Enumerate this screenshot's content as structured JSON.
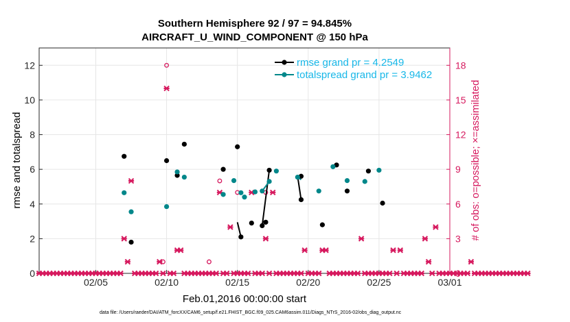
{
  "chart_data": {
    "type": "scatter",
    "title": "Southern Hemisphere 92 / 97 = 94.845%",
    "subtitle": "AIRCRAFT_U_WIND_COMPONENT @ 150 hPa",
    "xlabel": "Feb.01,2016 00:00:00 start",
    "ylabel": "rmse and totalspread",
    "ylabel_right": "# of obs: o=possible; ×=assimilated",
    "footer": "data file: /Users/raeder/DAI/ATM_forcXX/CAM6_setup/f.e21.FHIST_BGC.f09_025.CAM6assim.011/Diags_NTrS_2016-02/obs_diag_output.nc",
    "xlim": [
      1,
      30
    ],
    "ylim": [
      0,
      13
    ],
    "ylim_right": [
      0,
      19.5
    ],
    "x_ticks": [
      5,
      10,
      15,
      20,
      25,
      30
    ],
    "x_tick_labels": [
      "02/05",
      "02/10",
      "02/15",
      "02/20",
      "02/25",
      "03/01"
    ],
    "y_ticks": [
      0,
      2,
      4,
      6,
      8,
      10,
      12
    ],
    "y_ticks_right": [
      0,
      3,
      6,
      9,
      12,
      15,
      18
    ],
    "grid": true,
    "legend_position": "top-right",
    "colors": {
      "rmse": "#000000",
      "spread": "#00878a",
      "obs": "#d6195e",
      "legend_text": "#17b7e8"
    },
    "series": [
      {
        "name": "rmse grand pr = 4.2549",
        "x": [
          7.0,
          7.5,
          10.0,
          10.75,
          11.25,
          14.0,
          15.0,
          15.25,
          15.5,
          16.5,
          17.0,
          17.25,
          19.5,
          19.75,
          21.0,
          22.0,
          22.75,
          24.25,
          24.5,
          25.25
        ],
        "y": [
          6.75,
          1.8,
          6.5,
          5.65,
          7.45,
          6.0,
          7.3,
          2.95,
          2.1,
          2.9,
          2.75,
          5.95,
          5.6,
          4.25,
          2.8,
          6.25,
          4.75,
          5.9,
          4.05,
          4.05
        ],
        "x_points": [
          7.0,
          7.5,
          10.0,
          10.75,
          11.25,
          14.0,
          15.0,
          17.0,
          19.5,
          21.0,
          22.0,
          22.75,
          24.25,
          25.25
        ],
        "y_points": [
          6.75,
          1.8,
          6.5,
          5.65,
          7.45,
          6.0,
          7.3,
          2.95,
          5.6,
          2.8,
          6.25,
          4.75,
          5.9,
          4.05
        ],
        "segments": [
          [
            [
              15.0,
              2.95
            ],
            [
              15.25,
              2.1
            ]
          ],
          [
            [
              16.75,
              2.75
            ],
            [
              17.25,
              5.95
            ]
          ],
          [
            [
              19.25,
              5.6
            ],
            [
              19.5,
              4.25
            ]
          ]
        ],
        "extra_points": [
          [
            15.25,
            2.1
          ],
          [
            16.0,
            2.9
          ],
          [
            16.75,
            2.75
          ],
          [
            17.25,
            5.95
          ],
          [
            19.5,
            4.25
          ]
        ]
      },
      {
        "name": "totalspread grand pr = 3.9462",
        "points": [
          [
            7.0,
            4.65
          ],
          [
            7.5,
            3.55
          ],
          [
            10.0,
            3.85
          ],
          [
            10.75,
            5.85
          ],
          [
            11.25,
            5.55
          ],
          [
            14.0,
            4.55
          ],
          [
            14.75,
            5.35
          ],
          [
            15.25,
            4.65
          ],
          [
            15.5,
            4.4
          ],
          [
            16.25,
            4.7
          ],
          [
            16.75,
            4.75
          ],
          [
            17.25,
            5.3
          ],
          [
            17.75,
            5.9
          ],
          [
            19.25,
            5.55
          ],
          [
            20.75,
            4.75
          ],
          [
            21.75,
            6.15
          ],
          [
            22.75,
            5.35
          ],
          [
            24.0,
            5.3
          ],
          [
            25.0,
            5.95
          ]
        ],
        "segments": [
          [
            [
              16.75,
              4.75
            ],
            [
              17.25,
              5.3
            ]
          ],
          [
            [
              19.25,
              5.55
            ],
            [
              19.5,
              5.4
            ]
          ]
        ]
      }
    ],
    "obs_assimilated_x_start": 1.0,
    "obs_assimilated_x_step": 0.25,
    "obs_assimilated": [
      0,
      0,
      0,
      0,
      0,
      0,
      0,
      0,
      0,
      0,
      0,
      0,
      0,
      0,
      0,
      0,
      0,
      0,
      0,
      0,
      0,
      0,
      0,
      0,
      3,
      1,
      8,
      0,
      0,
      0,
      0,
      0,
      0,
      0,
      1,
      0,
      16,
      0,
      0,
      2,
      2,
      0,
      0,
      0,
      0,
      0,
      0,
      0,
      0,
      0,
      0,
      7,
      0,
      0,
      4,
      0,
      0,
      0,
      0,
      0,
      7,
      0,
      0,
      0,
      3,
      0,
      7,
      0,
      0,
      0,
      0,
      0,
      0,
      0,
      0,
      2,
      0,
      0,
      0,
      0,
      2,
      2,
      0,
      0,
      0,
      0,
      0,
      0,
      0,
      0,
      0,
      3,
      0,
      0,
      0,
      0,
      0,
      0,
      0,
      0,
      2,
      0,
      2,
      0,
      0,
      0,
      0,
      0,
      0,
      3,
      1,
      0,
      4,
      0,
      0,
      0,
      0,
      0,
      0,
      0,
      0,
      0,
      1,
      0,
      0,
      0,
      0,
      0,
      0,
      0,
      0,
      0,
      0,
      0,
      0,
      0,
      0,
      0,
      0
    ],
    "obs_possible_x": [
      9.75,
      10.0,
      13.0,
      13.75,
      15.0,
      17.0
    ],
    "obs_possible_y": [
      1,
      18,
      1,
      8,
      7,
      7
    ]
  }
}
